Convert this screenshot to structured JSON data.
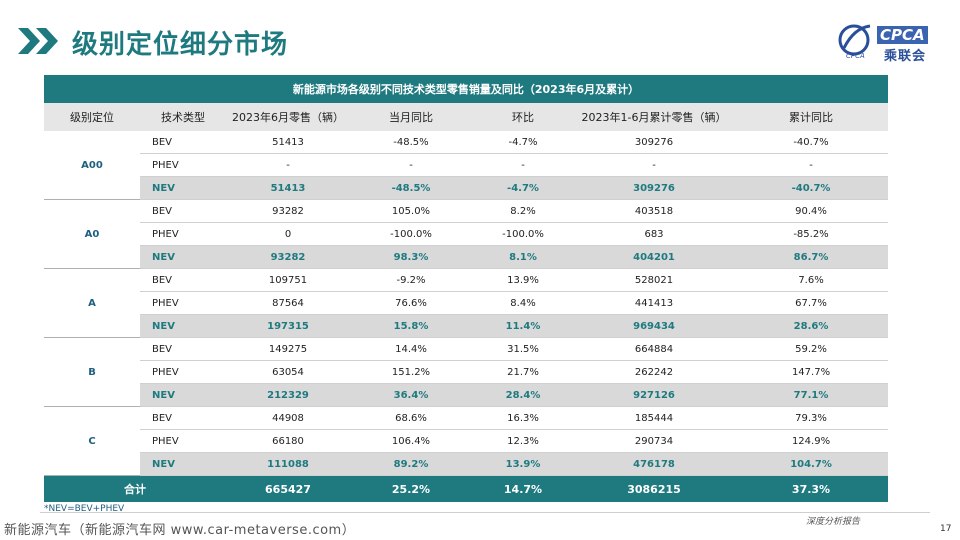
{
  "title": "级别定位细分市场",
  "logo": {
    "name": "CPCA",
    "subtitle": "乘联会",
    "small": "CPCA"
  },
  "table": {
    "caption": "新能源市场各级别不同技术类型零售销量及同比（2023年6月及累计）",
    "headers": [
      "级别定位",
      "技术类型",
      "2023年6月零售（辆）",
      "当月同比",
      "环比",
      "2023年1-6月累计零售（辆）",
      "累计同比"
    ],
    "groups": [
      {
        "level": "A00",
        "rows": [
          {
            "tech": "BEV",
            "jun": "51413",
            "yoy": "-48.5%",
            "mom": "-4.7%",
            "ytd": "309276",
            "ytd_yoy": "-40.7%"
          },
          {
            "tech": "PHEV",
            "jun": "-",
            "yoy": "-",
            "mom": "-",
            "ytd": "-",
            "ytd_yoy": "-"
          },
          {
            "tech": "NEV",
            "jun": "51413",
            "yoy": "-48.5%",
            "mom": "-4.7%",
            "ytd": "309276",
            "ytd_yoy": "-40.7%"
          }
        ]
      },
      {
        "level": "A0",
        "rows": [
          {
            "tech": "BEV",
            "jun": "93282",
            "yoy": "105.0%",
            "mom": "8.2%",
            "ytd": "403518",
            "ytd_yoy": "90.4%"
          },
          {
            "tech": "PHEV",
            "jun": "0",
            "yoy": "-100.0%",
            "mom": "-100.0%",
            "ytd": "683",
            "ytd_yoy": "-85.2%"
          },
          {
            "tech": "NEV",
            "jun": "93282",
            "yoy": "98.3%",
            "mom": "8.1%",
            "ytd": "404201",
            "ytd_yoy": "86.7%"
          }
        ]
      },
      {
        "level": "A",
        "rows": [
          {
            "tech": "BEV",
            "jun": "109751",
            "yoy": "-9.2%",
            "mom": "13.9%",
            "ytd": "528021",
            "ytd_yoy": "7.6%"
          },
          {
            "tech": "PHEV",
            "jun": "87564",
            "yoy": "76.6%",
            "mom": "8.4%",
            "ytd": "441413",
            "ytd_yoy": "67.7%"
          },
          {
            "tech": "NEV",
            "jun": "197315",
            "yoy": "15.8%",
            "mom": "11.4%",
            "ytd": "969434",
            "ytd_yoy": "28.6%"
          }
        ]
      },
      {
        "level": "B",
        "rows": [
          {
            "tech": "BEV",
            "jun": "149275",
            "yoy": "14.4%",
            "mom": "31.5%",
            "ytd": "664884",
            "ytd_yoy": "59.2%"
          },
          {
            "tech": "PHEV",
            "jun": "63054",
            "yoy": "151.2%",
            "mom": "21.7%",
            "ytd": "262242",
            "ytd_yoy": "147.7%"
          },
          {
            "tech": "NEV",
            "jun": "212329",
            "yoy": "36.4%",
            "mom": "28.4%",
            "ytd": "927126",
            "ytd_yoy": "77.1%"
          }
        ]
      },
      {
        "level": "C",
        "rows": [
          {
            "tech": "BEV",
            "jun": "44908",
            "yoy": "68.6%",
            "mom": "16.3%",
            "ytd": "185444",
            "ytd_yoy": "79.3%"
          },
          {
            "tech": "PHEV",
            "jun": "66180",
            "yoy": "106.4%",
            "mom": "12.3%",
            "ytd": "290734",
            "ytd_yoy": "124.9%"
          },
          {
            "tech": "NEV",
            "jun": "111088",
            "yoy": "89.2%",
            "mom": "13.9%",
            "ytd": "476178",
            "ytd_yoy": "104.7%"
          }
        ]
      }
    ],
    "total": {
      "label": "合计",
      "jun": "665427",
      "yoy": "25.2%",
      "mom": "14.7%",
      "ytd": "3086215",
      "ytd_yoy": "37.3%"
    }
  },
  "footnote": "*NEV=BEV+PHEV",
  "source": "新能源汽车（新能源汽车网 www.car-metaverse.com）",
  "report_tag": "深度分析报告",
  "page_number": "17",
  "colors": {
    "teal": "#1f7a80",
    "grey_row": "#d9d9d9",
    "header_grey": "#e6e6e6"
  }
}
